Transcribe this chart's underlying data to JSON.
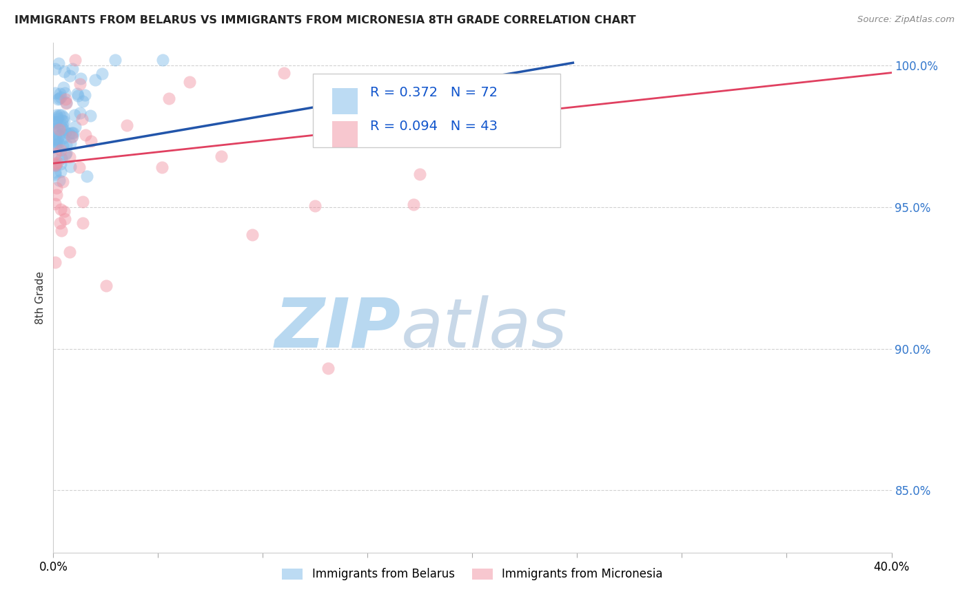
{
  "title": "IMMIGRANTS FROM BELARUS VS IMMIGRANTS FROM MICRONESIA 8TH GRADE CORRELATION CHART",
  "source": "Source: ZipAtlas.com",
  "ylabel": "8th Grade",
  "xmin": 0.0,
  "xmax": 0.4,
  "ymin": 0.828,
  "ymax": 1.008,
  "yticks": [
    0.85,
    0.9,
    0.95,
    1.0
  ],
  "yticklabels": [
    "85.0%",
    "90.0%",
    "95.0%",
    "100.0%"
  ],
  "legend_label1": "Immigrants from Belarus",
  "legend_label2": "Immigrants from Micronesia",
  "R1": 0.372,
  "N1": 72,
  "R2": 0.094,
  "N2": 43,
  "color1": "#7ab8e8",
  "color2": "#f090a0",
  "line_color1": "#2255aa",
  "line_color2": "#e04060",
  "watermark1": "ZIP",
  "watermark2": "atlas",
  "watermark_color1": "#b8d8f0",
  "watermark_color2": "#c8d8e8",
  "seed1": 15,
  "seed2": 77,
  "blue_line_x0": 0.0,
  "blue_line_y0": 0.9695,
  "blue_line_x1": 0.248,
  "blue_line_y1": 1.001,
  "pink_line_x0": 0.0,
  "pink_line_y0": 0.9655,
  "pink_line_x1": 0.4,
  "pink_line_y1": 0.9975
}
